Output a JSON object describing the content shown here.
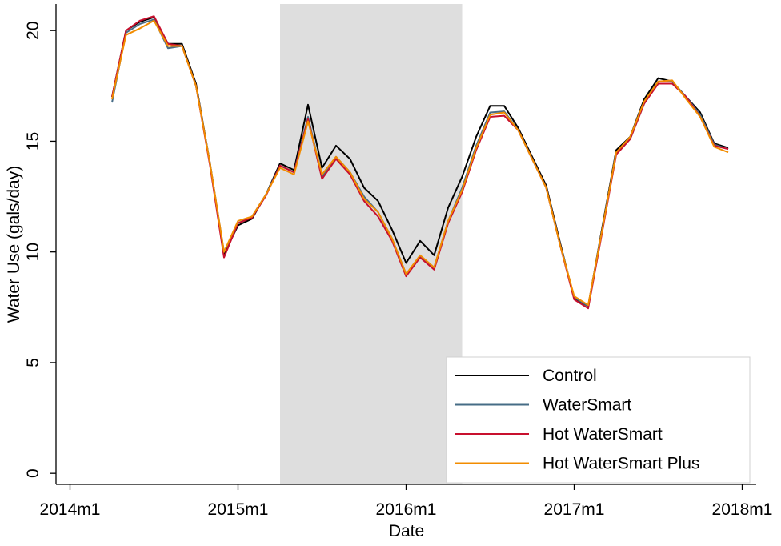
{
  "chart_data": {
    "type": "line",
    "x_label": "Date",
    "y_label": "Water Use (gals/day)",
    "x": [
      "2014m4",
      "2014m5",
      "2014m6",
      "2014m7",
      "2014m8",
      "2014m9",
      "2014m10",
      "2014m11",
      "2014m12",
      "2015m1",
      "2015m2",
      "2015m3",
      "2015m4",
      "2015m5",
      "2015m6",
      "2015m7",
      "2015m8",
      "2015m9",
      "2015m10",
      "2015m11",
      "2015m12",
      "2016m1",
      "2016m2",
      "2016m3",
      "2016m4",
      "2016m5",
      "2016m6",
      "2016m7",
      "2016m8",
      "2016m9",
      "2016m10",
      "2016m11",
      "2016m12",
      "2017m1",
      "2017m2",
      "2017m3",
      "2017m4",
      "2017m5",
      "2017m6",
      "2017m7",
      "2017m8",
      "2017m9",
      "2017m10",
      "2017m11",
      "2017m12"
    ],
    "series": [
      {
        "name": "Control",
        "color": "#000000",
        "values": [
          17.0,
          20.0,
          20.4,
          20.6,
          19.4,
          19.4,
          17.6,
          14.0,
          9.9,
          11.2,
          11.5,
          12.6,
          14.0,
          13.7,
          16.65,
          13.8,
          14.8,
          14.2,
          12.9,
          12.3,
          11.0,
          9.5,
          10.5,
          9.85,
          12.0,
          13.4,
          15.2,
          16.6,
          16.6,
          15.6,
          14.3,
          13.0,
          10.4,
          7.9,
          7.55,
          11.1,
          14.6,
          15.2,
          16.9,
          17.85,
          17.7,
          17.0,
          16.3,
          14.9,
          14.7
        ]
      },
      {
        "name": "WaterSmart",
        "color": "#466c86",
        "values": [
          16.75,
          19.9,
          20.3,
          20.5,
          19.2,
          19.3,
          17.5,
          14.0,
          10.0,
          11.3,
          11.6,
          12.6,
          13.9,
          13.6,
          16.1,
          13.4,
          14.3,
          13.6,
          12.5,
          11.8,
          10.6,
          9.0,
          9.8,
          9.3,
          11.4,
          12.9,
          14.8,
          16.3,
          16.35,
          15.5,
          14.2,
          12.9,
          10.3,
          7.95,
          7.55,
          11.0,
          14.5,
          15.1,
          16.7,
          17.7,
          17.7,
          17.0,
          16.2,
          14.85,
          14.65
        ]
      },
      {
        "name": "Hot WaterSmart",
        "color": "#c8102e",
        "values": [
          17.0,
          20.0,
          20.45,
          20.65,
          19.4,
          19.3,
          17.5,
          13.9,
          9.75,
          11.3,
          11.55,
          12.55,
          13.9,
          13.6,
          16.0,
          13.3,
          14.2,
          13.5,
          12.3,
          11.6,
          10.5,
          8.9,
          9.75,
          9.2,
          11.3,
          12.7,
          14.6,
          16.1,
          16.15,
          15.5,
          14.2,
          12.9,
          10.3,
          7.85,
          7.45,
          10.9,
          14.4,
          15.1,
          16.7,
          17.6,
          17.6,
          17.0,
          16.1,
          14.8,
          14.65
        ]
      },
      {
        "name": "Hot WaterSmart Plus",
        "color": "#f28c00",
        "values": [
          16.9,
          19.8,
          20.1,
          20.45,
          19.3,
          19.3,
          17.5,
          14.0,
          10.0,
          11.4,
          11.6,
          12.6,
          13.8,
          13.5,
          15.9,
          13.5,
          14.3,
          13.6,
          12.4,
          11.8,
          10.6,
          9.0,
          9.85,
          9.3,
          11.4,
          12.8,
          14.7,
          16.2,
          16.3,
          15.5,
          14.2,
          12.9,
          10.3,
          8.0,
          7.6,
          11.0,
          14.5,
          15.2,
          16.8,
          17.7,
          17.75,
          16.9,
          16.1,
          14.75,
          14.5
        ]
      }
    ],
    "xlim": [
      "2013m12",
      "2018m2"
    ],
    "xticks": [
      "2014m1",
      "2015m1",
      "2016m1",
      "2017m1",
      "2018m1"
    ],
    "ylim": [
      -0.5,
      21.2
    ],
    "yticks": [
      0,
      5,
      10,
      15,
      20
    ],
    "highlight": [
      "2015m4",
      "2016m5"
    ],
    "highlight_color": "#dedede",
    "legend": "lower right"
  }
}
